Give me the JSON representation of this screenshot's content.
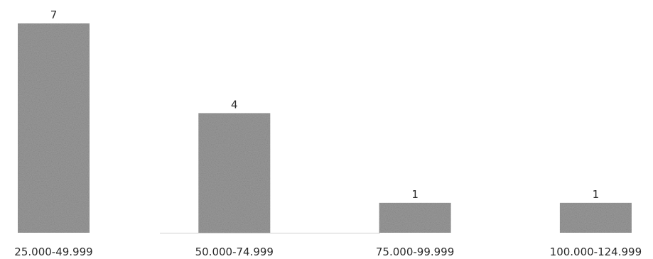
{
  "chart_data": {
    "type": "bar",
    "title": "",
    "xlabel": "",
    "ylabel": "",
    "categories": [
      "25.000-49.999",
      "50.000-74.999",
      "75.000-99.999",
      "100.000-124.999"
    ],
    "values": [
      7,
      4,
      1,
      1
    ],
    "data_labels": [
      "7",
      "4",
      "1",
      "1"
    ],
    "ylim": [
      0,
      7
    ],
    "grid": false,
    "legend": "none",
    "bar_color": "#9a9a9a",
    "baseline_color": "#cfcfcf"
  }
}
